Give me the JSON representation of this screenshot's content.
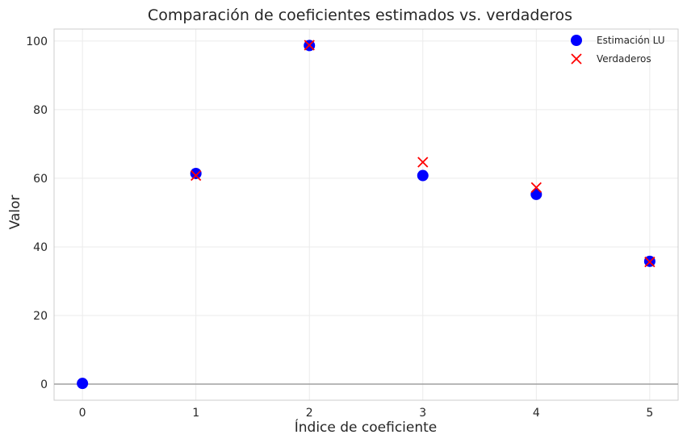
{
  "chart_data": {
    "type": "scatter",
    "title": "Comparación de coeficientes estimados vs. verdaderos",
    "xlabel": "Índice de coeficiente",
    "ylabel": "Valor",
    "xlim": [
      -0.25,
      5.25
    ],
    "ylim": [
      -4.7,
      103.5
    ],
    "xticks": [
      0,
      1,
      2,
      3,
      4,
      5
    ],
    "yticks": [
      0,
      20,
      40,
      60,
      80,
      100
    ],
    "grid": true,
    "hline": 0,
    "legend_position": "top-right",
    "series": [
      {
        "name": "Estimación LU",
        "marker": "circle",
        "color": "#0000ff",
        "x": [
          0,
          1,
          2,
          3,
          4,
          5
        ],
        "y": [
          0.2,
          61.4,
          98.7,
          60.8,
          55.3,
          35.8
        ]
      },
      {
        "name": "Verdaderos",
        "marker": "x",
        "color": "#ff0000",
        "x": [
          1,
          2,
          3,
          4,
          5
        ],
        "y": [
          60.8,
          98.8,
          64.7,
          57.3,
          35.6
        ]
      }
    ]
  }
}
